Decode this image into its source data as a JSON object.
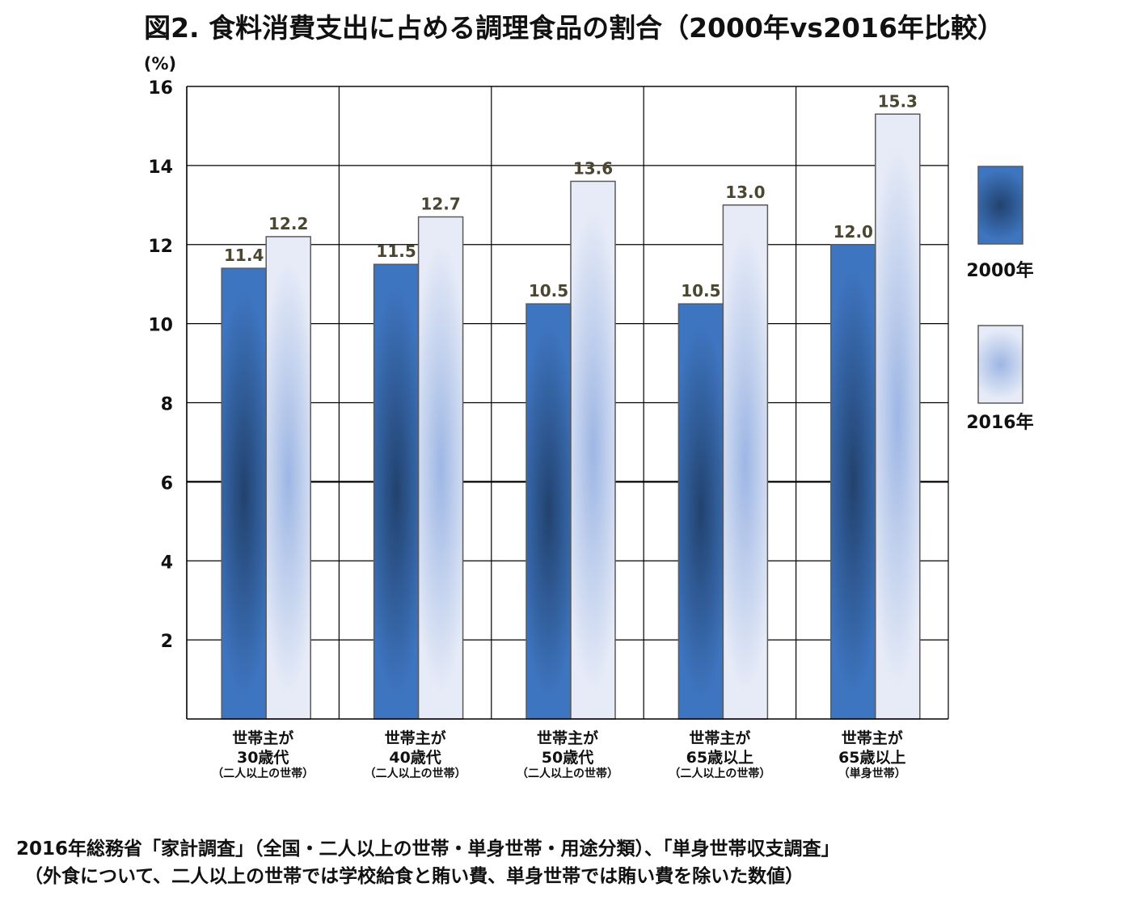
{
  "chart_data": {
    "type": "bar",
    "title": "図2.  食料消費支出に占める調理食品の割合（2000年vs2016年比較）",
    "ylabel": "(%)",
    "ylim": [
      0,
      16
    ],
    "yticks": [
      "2",
      "4",
      "6",
      "8",
      "10",
      "12",
      "14",
      "16"
    ],
    "grid": true,
    "legend_position": "right",
    "categories": [
      {
        "line1": "世帯主が",
        "line2": "30歳代",
        "line3": "（二人以上の世帯）"
      },
      {
        "line1": "世帯主が",
        "line2": "40歳代",
        "line3": "（二人以上の世帯）"
      },
      {
        "line1": "世帯主が",
        "line2": "50歳代",
        "line3": "（二人以上の世帯）"
      },
      {
        "line1": "世帯主が",
        "line2": "65歳以上",
        "line3": "（二人以上の世帯）"
      },
      {
        "line1": "世帯主が",
        "line2": "65歳以上",
        "line3": "（単身世帯）"
      }
    ],
    "series": [
      {
        "name": "2000年",
        "values": [
          11.4,
          11.5,
          10.5,
          10.5,
          12.0
        ],
        "labels": [
          "11.4",
          "11.5",
          "10.5",
          "10.5",
          "12.0"
        ],
        "color_edge": "#3e75c0",
        "color_center": "#22426e"
      },
      {
        "name": "2016年",
        "values": [
          12.2,
          12.7,
          13.6,
          13.0,
          15.3
        ],
        "labels": [
          "12.2",
          "12.7",
          "13.6",
          "13.0",
          "15.3"
        ],
        "color_edge": "#e6ebf7",
        "color_center": "#9db6e4"
      }
    ],
    "data_label_color": "#4a4630"
  },
  "source": {
    "line1": "2016年総務省「家計調査」（全国・二人以上の世帯・単身世帯・用途分類）、「単身世帯収支調査」",
    "line2": "（外食について、二人以上の世帯では学校給食と賄い費、単身世帯では賄い費を除いた数値）"
  }
}
